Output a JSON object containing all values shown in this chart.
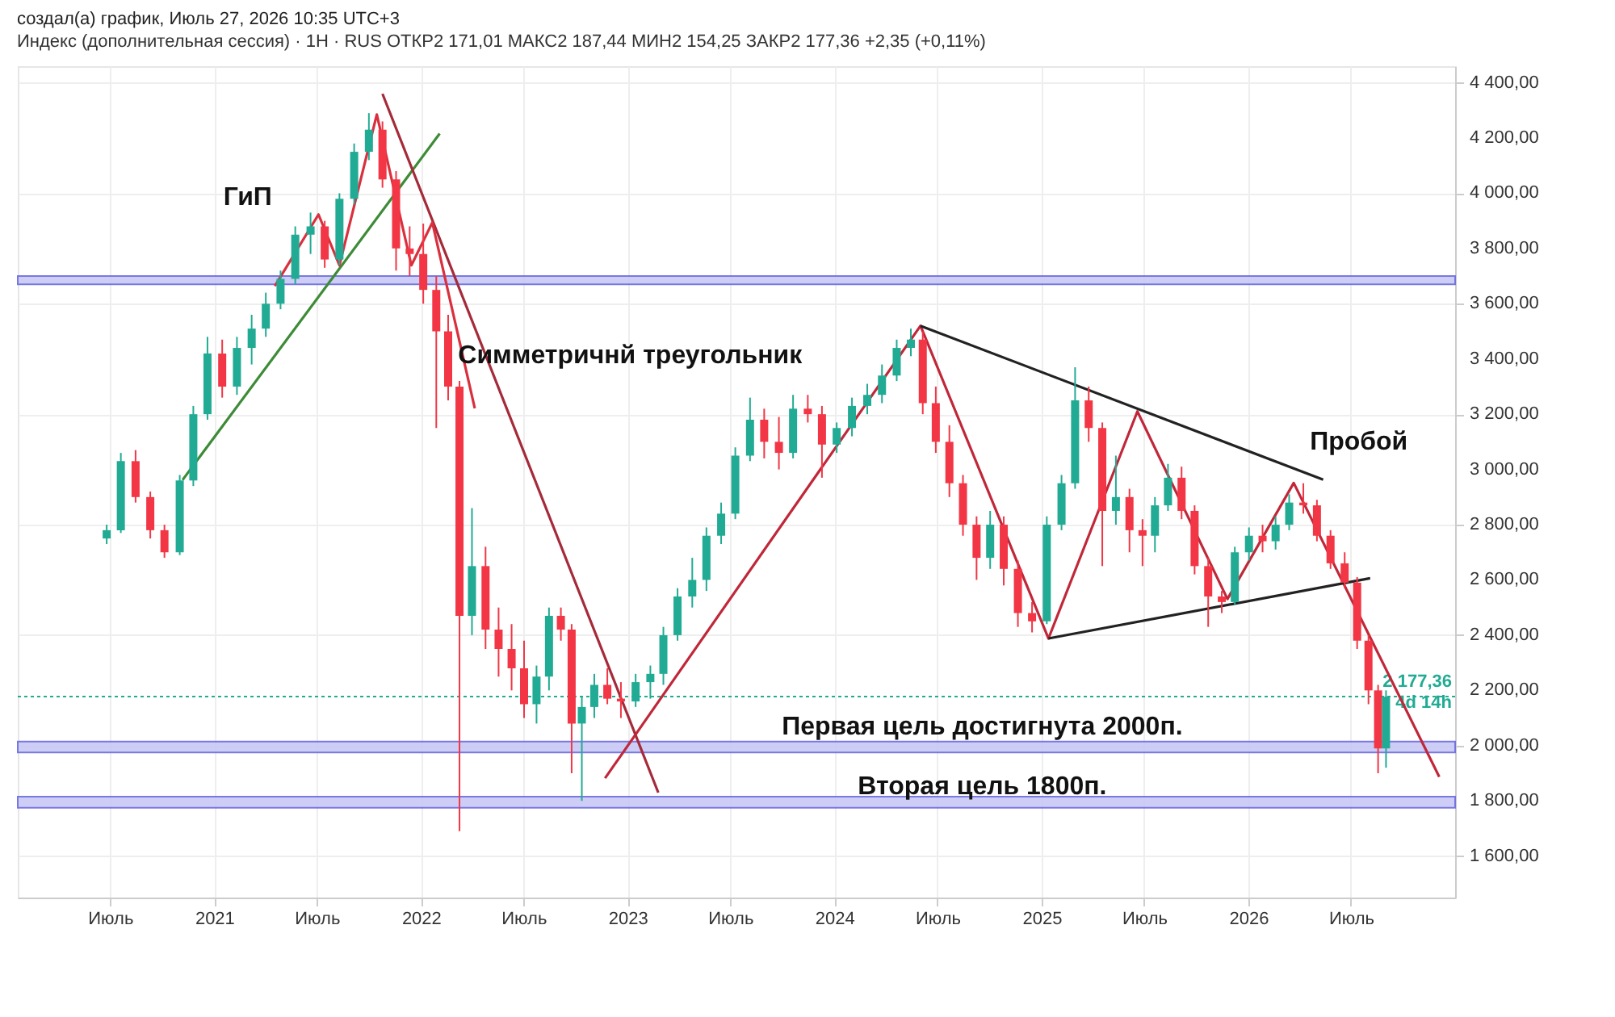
{
  "chart_data": {
    "type": "candlestick",
    "title": "создал(а) график, Июль 27, 2026 10:35 UTC+3",
    "subtitle": "Индекс (дополнительная сессия) · 1H · RUS   ОТКР2 171,01   МАКС2 187,44   МИН2 154,25   ЗАКР2 177,36   +2,35 (+0,11%)",
    "x": [
      "2020-06-25",
      "2020-07-20",
      "2020-08-15",
      "2020-09-10",
      "2020-10-05",
      "2020-11-01",
      "2020-11-25",
      "2020-12-20",
      "2021-01-15",
      "2021-02-10",
      "2021-03-08",
      "2021-04-02",
      "2021-04-28",
      "2021-05-24",
      "2021-06-20",
      "2021-07-15",
      "2021-08-10",
      "2021-09-05",
      "2021-10-01",
      "2021-10-25",
      "2021-11-18",
      "2021-12-12",
      "2022-01-05",
      "2022-01-28",
      "2022-02-18",
      "2022-03-10",
      "2022-04-01",
      "2022-04-25",
      "2022-05-18",
      "2022-06-10",
      "2022-07-02",
      "2022-07-24",
      "2022-08-15",
      "2022-09-05",
      "2022-09-24",
      "2022-10-12",
      "2022-11-03",
      "2022-11-26",
      "2022-12-20",
      "2023-01-15",
      "2023-02-10",
      "2023-03-05",
      "2023-03-30",
      "2023-04-25",
      "2023-05-20",
      "2023-06-15",
      "2023-07-10",
      "2023-08-05",
      "2023-08-30",
      "2023-09-25",
      "2023-10-20",
      "2023-11-15",
      "2023-12-10",
      "2024-01-05",
      "2024-02-01",
      "2024-02-28",
      "2024-03-25",
      "2024-04-20",
      "2024-05-15",
      "2024-06-05",
      "2024-06-28",
      "2024-07-22",
      "2024-08-15",
      "2024-09-08",
      "2024-10-02",
      "2024-10-26",
      "2024-11-20",
      "2024-12-15",
      "2025-01-10",
      "2025-02-05",
      "2025-03-01",
      "2025-03-25",
      "2025-04-18",
      "2025-05-12",
      "2025-06-05",
      "2025-06-28",
      "2025-07-20",
      "2025-08-12",
      "2025-09-05",
      "2025-09-28",
      "2025-10-22",
      "2025-11-15",
      "2025-12-08",
      "2026-01-02",
      "2026-01-26",
      "2026-02-18",
      "2026-03-14",
      "2026-04-08",
      "2026-05-02",
      "2026-05-26",
      "2026-06-20",
      "2026-07-12",
      "2026-08-01",
      "2026-08-18",
      "2026-09-01"
    ],
    "ohlc": [
      [
        2750,
        2800,
        2730,
        2780
      ],
      [
        2780,
        3060,
        2770,
        3030
      ],
      [
        3030,
        3070,
        2880,
        2900
      ],
      [
        2900,
        2920,
        2750,
        2780
      ],
      [
        2780,
        2800,
        2680,
        2700
      ],
      [
        2700,
        2980,
        2690,
        2960
      ],
      [
        2960,
        3230,
        2940,
        3200
      ],
      [
        3200,
        3480,
        3180,
        3420
      ],
      [
        3420,
        3470,
        3260,
        3300
      ],
      [
        3300,
        3480,
        3270,
        3440
      ],
      [
        3440,
        3560,
        3380,
        3510
      ],
      [
        3510,
        3640,
        3480,
        3600
      ],
      [
        3600,
        3720,
        3580,
        3690
      ],
      [
        3690,
        3880,
        3670,
        3850
      ],
      [
        3850,
        3930,
        3780,
        3880
      ],
      [
        3880,
        3900,
        3730,
        3760
      ],
      [
        3760,
        4000,
        3740,
        3980
      ],
      [
        3980,
        4180,
        3960,
        4150
      ],
      [
        4150,
        4290,
        4120,
        4230
      ],
      [
        4230,
        4260,
        4020,
        4050
      ],
      [
        4050,
        4080,
        3720,
        3800
      ],
      [
        3800,
        3880,
        3700,
        3780
      ],
      [
        3780,
        3890,
        3600,
        3650
      ],
      [
        3650,
        3700,
        3150,
        3500
      ],
      [
        3500,
        3560,
        3250,
        3300
      ],
      [
        3300,
        3320,
        1690,
        2470
      ],
      [
        2470,
        2860,
        2400,
        2650
      ],
      [
        2650,
        2720,
        2350,
        2420
      ],
      [
        2420,
        2500,
        2250,
        2350
      ],
      [
        2350,
        2440,
        2200,
        2280
      ],
      [
        2280,
        2380,
        2100,
        2150
      ],
      [
        2150,
        2290,
        2080,
        2250
      ],
      [
        2250,
        2500,
        2200,
        2470
      ],
      [
        2470,
        2500,
        2380,
        2420
      ],
      [
        2420,
        2440,
        1900,
        2080
      ],
      [
        2080,
        2180,
        1800,
        2140
      ],
      [
        2140,
        2260,
        2100,
        2220
      ],
      [
        2220,
        2280,
        2150,
        2170
      ],
      [
        2170,
        2230,
        2100,
        2160
      ],
      [
        2160,
        2260,
        2140,
        2230
      ],
      [
        2230,
        2290,
        2170,
        2260
      ],
      [
        2260,
        2430,
        2220,
        2400
      ],
      [
        2400,
        2570,
        2380,
        2540
      ],
      [
        2540,
        2680,
        2500,
        2600
      ],
      [
        2600,
        2790,
        2560,
        2760
      ],
      [
        2760,
        2880,
        2730,
        2840
      ],
      [
        2840,
        3080,
        2820,
        3050
      ],
      [
        3050,
        3260,
        3030,
        3180
      ],
      [
        3180,
        3220,
        3040,
        3100
      ],
      [
        3100,
        3190,
        3000,
        3060
      ],
      [
        3060,
        3270,
        3040,
        3220
      ],
      [
        3220,
        3270,
        3170,
        3200
      ],
      [
        3200,
        3230,
        2970,
        3090
      ],
      [
        3090,
        3170,
        3060,
        3150
      ],
      [
        3150,
        3260,
        3120,
        3230
      ],
      [
        3230,
        3310,
        3200,
        3270
      ],
      [
        3270,
        3380,
        3240,
        3340
      ],
      [
        3340,
        3470,
        3320,
        3440
      ],
      [
        3440,
        3510,
        3410,
        3470
      ],
      [
        3470,
        3500,
        3200,
        3240
      ],
      [
        3240,
        3300,
        3060,
        3100
      ],
      [
        3100,
        3160,
        2900,
        2950
      ],
      [
        2950,
        2980,
        2760,
        2800
      ],
      [
        2800,
        2830,
        2600,
        2680
      ],
      [
        2680,
        2850,
        2640,
        2800
      ],
      [
        2800,
        2830,
        2580,
        2640
      ],
      [
        2640,
        2670,
        2430,
        2480
      ],
      [
        2480,
        2520,
        2410,
        2450
      ],
      [
        2450,
        2830,
        2440,
        2800
      ],
      [
        2800,
        2980,
        2780,
        2950
      ],
      [
        2950,
        3370,
        2930,
        3250
      ],
      [
        3250,
        3300,
        3100,
        3150
      ],
      [
        3150,
        3170,
        2650,
        2850
      ],
      [
        2850,
        3050,
        2800,
        2900
      ],
      [
        2900,
        2930,
        2700,
        2780
      ],
      [
        2780,
        2820,
        2650,
        2760
      ],
      [
        2760,
        2900,
        2700,
        2870
      ],
      [
        2870,
        3020,
        2850,
        2970
      ],
      [
        2970,
        3010,
        2820,
        2850
      ],
      [
        2850,
        2870,
        2620,
        2650
      ],
      [
        2650,
        2680,
        2430,
        2540
      ],
      [
        2540,
        2560,
        2480,
        2520
      ],
      [
        2520,
        2720,
        2510,
        2700
      ],
      [
        2700,
        2790,
        2670,
        2760
      ],
      [
        2760,
        2800,
        2700,
        2740
      ],
      [
        2740,
        2830,
        2710,
        2800
      ],
      [
        2800,
        2910,
        2780,
        2880
      ],
      [
        2880,
        2950,
        2840,
        2870
      ],
      [
        2870,
        2890,
        2740,
        2760
      ],
      [
        2760,
        2780,
        2640,
        2660
      ],
      [
        2660,
        2700,
        2570,
        2590
      ],
      [
        2590,
        2610,
        2350,
        2380
      ],
      [
        2380,
        2400,
        2150,
        2200
      ],
      [
        2200,
        2220,
        1900,
        1990
      ],
      [
        1990,
        2200,
        1920,
        2177.36
      ]
    ],
    "colors": [
      "#22ab94",
      "#22ab94",
      "#f23645",
      "#f23645",
      "#f23645",
      "#22ab94",
      "#22ab94",
      "#22ab94",
      "#f23645",
      "#22ab94",
      "#22ab94",
      "#22ab94",
      "#22ab94",
      "#22ab94",
      "#22ab94",
      "#f23645",
      "#22ab94",
      "#22ab94",
      "#22ab94",
      "#f23645",
      "#f23645",
      "#f23645",
      "#f23645",
      "#f23645",
      "#f23645",
      "#f23645",
      "#22ab94",
      "#f23645",
      "#f23645",
      "#f23645",
      "#f23645",
      "#22ab94",
      "#22ab94",
      "#f23645",
      "#f23645",
      "#22ab94",
      "#22ab94",
      "#f23645",
      "#f23645",
      "#22ab94",
      "#22ab94",
      "#22ab94",
      "#22ab94",
      "#22ab94",
      "#22ab94",
      "#22ab94",
      "#22ab94",
      "#22ab94",
      "#f23645",
      "#f23645",
      "#22ab94",
      "#f23645",
      "#f23645",
      "#22ab94",
      "#22ab94",
      "#22ab94",
      "#22ab94",
      "#22ab94",
      "#22ab94",
      "#f23645",
      "#f23645",
      "#f23645",
      "#f23645",
      "#f23645",
      "#22ab94",
      "#f23645",
      "#f23645",
      "#f23645",
      "#22ab94",
      "#22ab94",
      "#22ab94",
      "#f23645",
      "#f23645",
      "#22ab94",
      "#f23645",
      "#f23645",
      "#22ab94",
      "#22ab94",
      "#f23645",
      "#f23645",
      "#f23645",
      "#f23645",
      "#22ab94",
      "#22ab94",
      "#f23645",
      "#22ab94",
      "#22ab94",
      "#f23645",
      "#f23645",
      "#f23645",
      "#f23645",
      "#f23645",
      "#f23645",
      "#f23645",
      "#22ab94"
    ],
    "series": [
      {
        "type": "line",
        "color": "#3d8b37",
        "x": [
          "2020-11-06",
          "2022-02-03"
        ],
        "values": [
          2962,
          4216
        ]
      },
      {
        "type": "line",
        "color": "#a52a3a",
        "x": [
          "2021-10-25",
          "2023-02-24"
        ],
        "values": [
          4360,
          1830
        ]
      },
      {
        "type": "line",
        "color": "#d9303e",
        "x": [
          "2021-04-18",
          "2021-07-04",
          "2021-08-10",
          "2021-10-15",
          "2021-12-15",
          "2022-01-21",
          "2022-04-06"
        ],
        "values": [
          3664,
          3923,
          3739,
          4285,
          3739,
          3894,
          3221
        ]
      },
      {
        "type": "line",
        "color": "#c0283a",
        "x": [
          "2022-11-22",
          "2024-06-01",
          "2025-01-13",
          "2025-06-19",
          "2025-11-25",
          "2026-03-22",
          "2026-12-04"
        ],
        "values": [
          1882,
          3520,
          2388,
          3210,
          2531,
          2951,
          1887
        ]
      },
      {
        "type": "line",
        "color": "#222222",
        "x": [
          "2024-06-01",
          "2026-05-13"
        ],
        "values": [
          3520,
          2963
        ]
      },
      {
        "type": "line",
        "color": "#222222",
        "x": [
          "2025-01-13",
          "2026-08-04"
        ],
        "values": [
          2388,
          2606
        ]
      }
    ],
    "bands": [
      {
        "axis": "y",
        "from": 3670,
        "to": 3700,
        "color": "#c8c8f4"
      },
      {
        "axis": "y",
        "from": 1975,
        "to": 2015,
        "color": "#c8c8f4"
      },
      {
        "axis": "y",
        "from": 1775,
        "to": 1815,
        "color": "#c8c8f4"
      }
    ],
    "ref_lines": [
      {
        "axis": "y",
        "value": 2177.36,
        "label": "2 177,36\n4d 14h",
        "color": "#22ab94",
        "line_style": "dotted"
      }
    ],
    "annotations": [
      "ГиП",
      "Симметричнй треугольник",
      "Пробой",
      "Первая цель достигнута 2000п.",
      "Вторая цель 1800п."
    ],
    "xlim": [
      "2020-01-20",
      "2027-01-01"
    ],
    "xticks": [
      {
        "value": "2020-07-01",
        "label": "Июль"
      },
      {
        "value": "2021-01-01",
        "label": "2021"
      },
      {
        "value": "2021-07-01",
        "label": "Июль"
      },
      {
        "value": "2022-01-01",
        "label": "2022"
      },
      {
        "value": "2022-07-01",
        "label": "Июль"
      },
      {
        "value": "2023-01-01",
        "label": "2023"
      },
      {
        "value": "2023-07-01",
        "label": "Июль"
      },
      {
        "value": "2024-01-01",
        "label": "2024"
      },
      {
        "value": "2024-07-01",
        "label": "Июль"
      },
      {
        "value": "2025-01-01",
        "label": "2025"
      },
      {
        "value": "2025-07-01",
        "label": "Июль"
      },
      {
        "value": "2026-01-01",
        "label": "2026"
      },
      {
        "value": "2026-07-01",
        "label": "Июль"
      }
    ],
    "ylim": [
      1450,
      4460
    ],
    "yticks": [
      {
        "value": 1600,
        "label": "1 600,00"
      },
      {
        "value": 1800,
        "label": "1 800,00"
      },
      {
        "value": 2000,
        "label": "2 000,00"
      },
      {
        "value": 2200,
        "label": "2 200,00"
      },
      {
        "value": 2400,
        "label": "2 400,00"
      },
      {
        "value": 2600,
        "label": "2 600,00"
      },
      {
        "value": 2800,
        "label": "2 800,00"
      },
      {
        "value": 3000,
        "label": "3 000,00"
      },
      {
        "value": 3200,
        "label": "3 200,00"
      },
      {
        "value": 3400,
        "label": "3 400,00"
      },
      {
        "value": 3600,
        "label": "3 600,00"
      },
      {
        "value": 3800,
        "label": "3 800,00"
      },
      {
        "value": 4000,
        "label": "4 000,00"
      },
      {
        "value": 4200,
        "label": "4 200,00"
      },
      {
        "value": 4400,
        "label": "4 400,00"
      }
    ],
    "grid": true
  }
}
